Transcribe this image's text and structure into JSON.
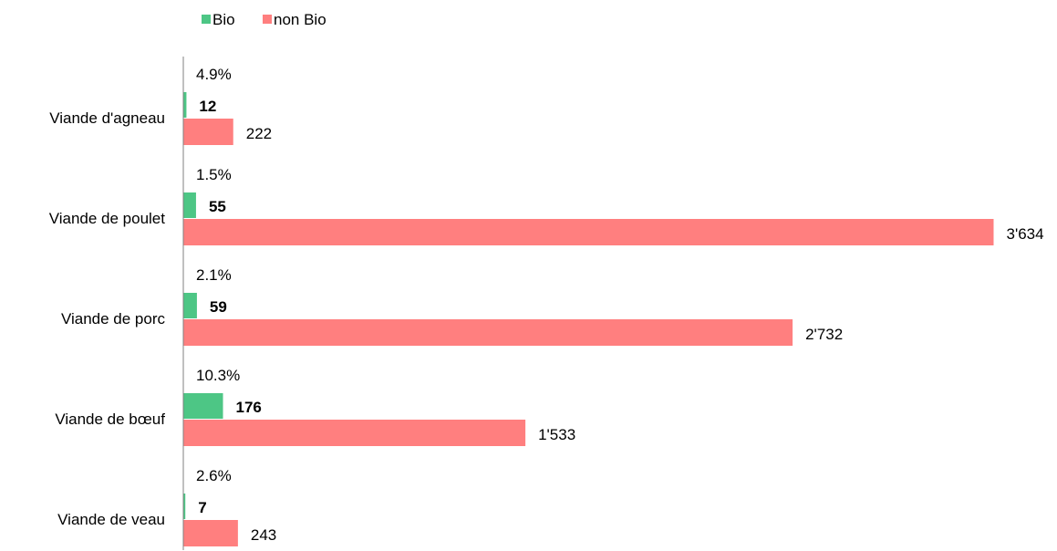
{
  "chart_data": {
    "type": "bar",
    "orientation": "horizontal",
    "categories": [
      "Viande d'agneau",
      "Viande de poulet",
      "Viande de porc",
      "Viande de bœuf",
      "Viande de veau"
    ],
    "series": [
      {
        "name": "Bio",
        "color": "#4dc685",
        "values": [
          12,
          55,
          59,
          176,
          7
        ],
        "labels": [
          "12",
          "55",
          "59",
          "176",
          "7"
        ]
      },
      {
        "name": "non Bio",
        "color": "#ff7f7f",
        "values": [
          222,
          3634,
          2732,
          1533,
          243
        ],
        "labels": [
          "222",
          "3'634",
          "2'732",
          "1'533",
          "243"
        ]
      }
    ],
    "share_labels": [
      "4.9%",
      "1.5%",
      "2.1%",
      "10.3%",
      "2.6%"
    ],
    "xlim": [
      0,
      3634
    ],
    "legend_position": "top-left",
    "grid": false
  }
}
